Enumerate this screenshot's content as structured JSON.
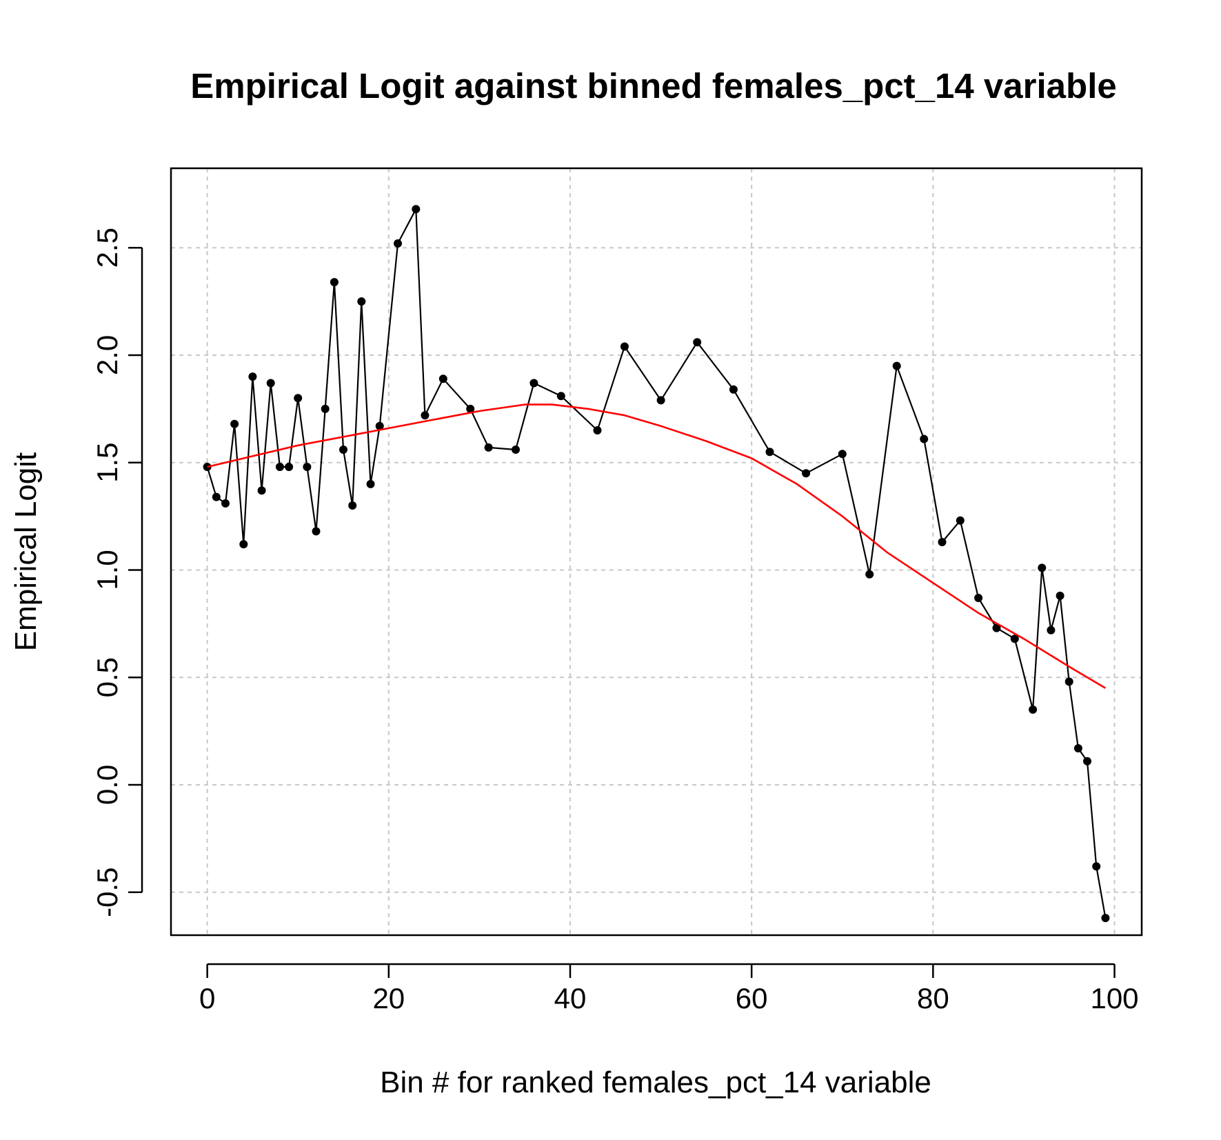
{
  "chart_data": {
    "type": "line",
    "title": "Empirical Logit against binned females_pct_14 variable",
    "xlabel": "Bin # for ranked females_pct_14 variable",
    "ylabel": "Empirical Logit",
    "xlim": [
      -4,
      103
    ],
    "ylim": [
      -0.7,
      2.87
    ],
    "x_ticks": [
      "0",
      "20",
      "40",
      "60",
      "80",
      "100"
    ],
    "y_ticks": [
      "-0.5",
      "0.0",
      "0.5",
      "1.0",
      "1.5",
      "2.0",
      "2.5"
    ],
    "grid": true,
    "series": [
      {
        "kind": "line-points",
        "color": "#000000",
        "x": [
          0,
          1,
          2,
          3,
          4,
          5,
          6,
          7,
          8,
          9,
          10,
          11,
          12,
          13,
          14,
          15,
          16,
          17,
          18,
          19,
          21,
          23,
          24,
          26,
          29,
          31,
          34,
          36,
          39,
          43,
          46,
          50,
          54,
          58,
          62,
          66,
          70,
          73,
          76,
          79,
          81,
          83,
          85,
          87,
          89,
          91,
          92,
          93,
          94,
          95,
          96,
          97,
          98,
          99
        ],
        "y": [
          1.48,
          1.34,
          1.31,
          1.68,
          1.12,
          1.9,
          1.37,
          1.87,
          1.48,
          1.48,
          1.8,
          1.48,
          1.18,
          1.75,
          2.34,
          1.56,
          1.3,
          2.25,
          1.4,
          1.67,
          2.52,
          2.68,
          1.72,
          1.89,
          1.75,
          1.57,
          1.56,
          1.87,
          1.81,
          1.65,
          2.04,
          1.79,
          2.06,
          1.84,
          1.55,
          1.45,
          1.54,
          0.98,
          1.95,
          1.61,
          1.13,
          1.23,
          0.87,
          0.73,
          0.68,
          0.35,
          1.01,
          0.72,
          0.88,
          0.48,
          0.17,
          0.11,
          -0.38,
          -0.62
        ]
      },
      {
        "kind": "smooth-line",
        "color": "#ff0000",
        "x": [
          0,
          5,
          10,
          15,
          20,
          25,
          30,
          35,
          38,
          42,
          46,
          50,
          55,
          60,
          65,
          70,
          75,
          80,
          85,
          90,
          95,
          99
        ],
        "y": [
          1.48,
          1.53,
          1.58,
          1.62,
          1.66,
          1.7,
          1.74,
          1.77,
          1.77,
          1.75,
          1.72,
          1.67,
          1.6,
          1.52,
          1.4,
          1.25,
          1.08,
          0.94,
          0.8,
          0.68,
          0.55,
          0.45
        ]
      }
    ]
  }
}
